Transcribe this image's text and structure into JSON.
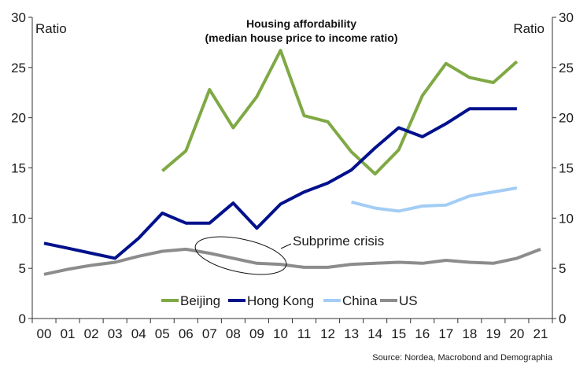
{
  "chart_data": {
    "type": "line",
    "title": "Housing affordability",
    "subtitle": "(median house price to income ratio)",
    "ylabel_left": "Ratio",
    "ylabel_right": "Ratio",
    "ylim": [
      0,
      30
    ],
    "yticks": [
      0,
      5,
      10,
      15,
      20,
      25,
      30
    ],
    "categories": [
      "00",
      "01",
      "02",
      "03",
      "04",
      "05",
      "06",
      "07",
      "08",
      "09",
      "10",
      "11",
      "12",
      "13",
      "14",
      "15",
      "16",
      "17",
      "18",
      "19",
      "20",
      "21"
    ],
    "series": [
      {
        "name": "Beijing",
        "color": "#7fa944",
        "values": [
          null,
          null,
          null,
          null,
          null,
          14.7,
          16.7,
          22.8,
          19.0,
          22.1,
          26.7,
          20.2,
          19.6,
          16.6,
          14.4,
          16.8,
          22.2,
          25.4,
          24.0,
          23.5,
          25.6,
          null
        ]
      },
      {
        "name": "Hong Kong",
        "color": "#00118c",
        "values": [
          7.5,
          7.0,
          6.5,
          6.0,
          8.0,
          10.5,
          9.5,
          9.5,
          11.5,
          9.0,
          11.4,
          12.6,
          13.5,
          14.8,
          17.0,
          19.0,
          18.1,
          19.4,
          20.9,
          20.9,
          20.9,
          null
        ]
      },
      {
        "name": "China",
        "color": "#a3cdf5",
        "values": [
          null,
          null,
          null,
          null,
          null,
          null,
          null,
          null,
          null,
          null,
          null,
          null,
          null,
          11.6,
          11.0,
          10.7,
          11.2,
          11.3,
          12.2,
          12.6,
          13.0,
          null
        ]
      },
      {
        "name": "US",
        "color": "#8c8c8c",
        "values": [
          4.4,
          4.9,
          5.3,
          5.6,
          6.2,
          6.7,
          6.9,
          6.5,
          6.0,
          5.5,
          5.4,
          5.1,
          5.1,
          5.4,
          5.5,
          5.6,
          5.5,
          5.8,
          5.6,
          5.5,
          6.0,
          6.9
        ]
      }
    ],
    "annotations": [
      {
        "text": "Subprime crisis"
      }
    ],
    "legend": "bottom-center",
    "grid": false,
    "source": "Source: Nordea, Macrobond and Demographia"
  }
}
